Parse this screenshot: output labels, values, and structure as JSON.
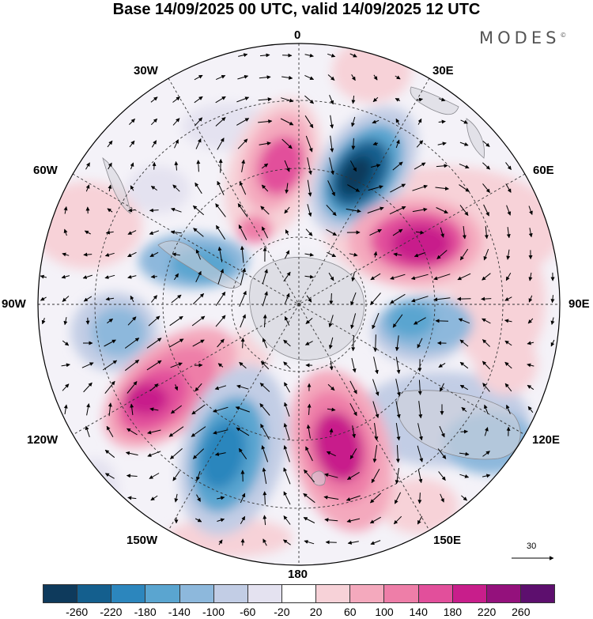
{
  "title": "Base 14/09/2025 00 UTC, valid 14/09/2025 12 UTC",
  "brand": "MODES",
  "brand_mark": "©",
  "meridian_labels": {
    "m0": "0",
    "m30e": "30E",
    "m60e": "60E",
    "m90e": "90E",
    "m120e": "120E",
    "m150e": "150E",
    "m180": "180",
    "m150w": "150W",
    "m120w": "120W",
    "m90w": "90W",
    "m60w": "60W",
    "m30w": "30W"
  },
  "reference_vector": "30",
  "colorbar": {
    "colors": [
      "#0e3a5c",
      "#145f8e",
      "#2c86bd",
      "#5aa5d0",
      "#8db8dc",
      "#c2cde5",
      "#e4e2f0",
      "#ffffff",
      "#f7d2d8",
      "#f4a9bd",
      "#ee7ea8",
      "#e24f9b",
      "#c81e8b",
      "#94117c",
      "#5d0f6e"
    ],
    "ticks": [
      "-260",
      "-220",
      "-180",
      "-140",
      "-100",
      "-60",
      "-20",
      "20",
      "60",
      "100",
      "140",
      "180",
      "220",
      "260"
    ]
  }
}
